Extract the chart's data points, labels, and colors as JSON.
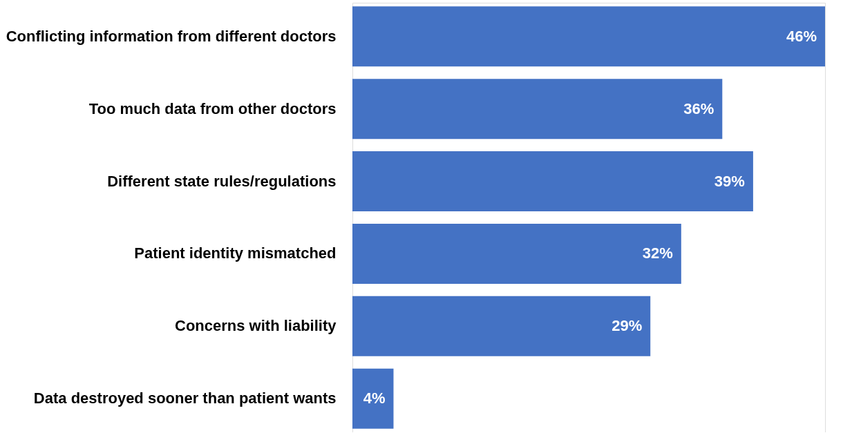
{
  "chart_data": {
    "type": "bar",
    "orientation": "horizontal",
    "categories": [
      "Conflicting information from different doctors",
      "Too much data from other doctors",
      "Different state rules/regulations",
      "Patient identity mismatched",
      "Concerns with liability",
      "Data destroyed sooner than patient wants"
    ],
    "values": [
      46,
      36,
      39,
      32,
      29,
      4
    ],
    "value_labels": [
      "46%",
      "36%",
      "39%",
      "32%",
      "29%",
      "4%"
    ],
    "color": "#4472c4",
    "xlim": [
      0,
      46
    ],
    "tick_labels": "y"
  }
}
